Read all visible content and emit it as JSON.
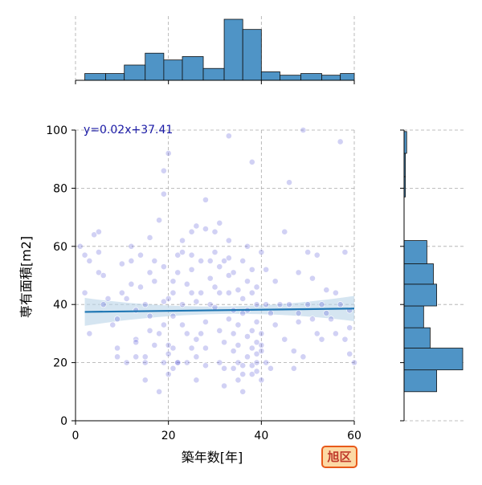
{
  "chart_data": {
    "type": "scatter",
    "xlabel": "築年数[年]",
    "ylabel": "専有面積[m2]",
    "xlim": [
      0,
      60
    ],
    "ylim": [
      0,
      100
    ],
    "xticks": [
      0,
      20,
      40,
      60
    ],
    "yticks": [
      0,
      20,
      40,
      60,
      80,
      100
    ],
    "grid": true,
    "annotation": "y=0.02x+37.41",
    "badge": "旭区",
    "regression": {
      "slope": 0.02,
      "intercept": 37.41,
      "x_range": [
        2,
        60
      ]
    },
    "colors": {
      "points": "#5b5bd6",
      "line": "#1f77b4",
      "band": "#b9d3e8",
      "hist": "#4f94c6",
      "badge_bg": "#fcd9a4",
      "badge_border": "#e8591a"
    },
    "x_histogram": {
      "bin_edges": [
        2,
        6.5,
        10.5,
        15,
        19,
        23,
        27.5,
        32,
        36,
        40,
        44,
        48.5,
        53,
        57,
        60
      ],
      "counts": [
        4,
        4,
        9,
        16,
        12,
        14,
        7,
        36,
        30,
        5,
        3,
        4,
        3,
        4
      ]
    },
    "y_histogram": {
      "bin_edges": [
        10,
        17.5,
        25,
        32,
        39.5,
        47,
        54,
        62,
        69,
        77,
        84,
        92,
        99.5
      ],
      "counts": [
        10,
        18,
        8,
        6,
        10,
        9,
        7,
        0,
        0,
        0.4,
        0.4,
        0.8
      ]
    },
    "points": [
      [
        1,
        60
      ],
      [
        2,
        44
      ],
      [
        2,
        57
      ],
      [
        3,
        55
      ],
      [
        4,
        64
      ],
      [
        5,
        65
      ],
      [
        5,
        58
      ],
      [
        5,
        51
      ],
      [
        3,
        30
      ],
      [
        6,
        40
      ],
      [
        6,
        50
      ],
      [
        7,
        42
      ],
      [
        8,
        33
      ],
      [
        9,
        22
      ],
      [
        9,
        25
      ],
      [
        9,
        35
      ],
      [
        10,
        44
      ],
      [
        10,
        54
      ],
      [
        11,
        20
      ],
      [
        11,
        42
      ],
      [
        12,
        47
      ],
      [
        12,
        55
      ],
      [
        12,
        60
      ],
      [
        13,
        28
      ],
      [
        13,
        22
      ],
      [
        13,
        27
      ],
      [
        14,
        46
      ],
      [
        14,
        57
      ],
      [
        15,
        14
      ],
      [
        15,
        20
      ],
      [
        15,
        22
      ],
      [
        15,
        40
      ],
      [
        16,
        31
      ],
      [
        16,
        51
      ],
      [
        16,
        63
      ],
      [
        17,
        26
      ],
      [
        17,
        48
      ],
      [
        17,
        55
      ],
      [
        18,
        69
      ],
      [
        18,
        30
      ],
      [
        18,
        10
      ],
      [
        19,
        20
      ],
      [
        19,
        33
      ],
      [
        19,
        41
      ],
      [
        19,
        53
      ],
      [
        19,
        78
      ],
      [
        19,
        86
      ],
      [
        20,
        92
      ],
      [
        20,
        16
      ],
      [
        20,
        23
      ],
      [
        20,
        26
      ],
      [
        21,
        18
      ],
      [
        21,
        25
      ],
      [
        21,
        36
      ],
      [
        21,
        44
      ],
      [
        21,
        48
      ],
      [
        22,
        20
      ],
      [
        22,
        57
      ],
      [
        22,
        20
      ],
      [
        23,
        58
      ],
      [
        23,
        33
      ],
      [
        23,
        40
      ],
      [
        23,
        62
      ],
      [
        24,
        47
      ],
      [
        24,
        20
      ],
      [
        24,
        30
      ],
      [
        25,
        25
      ],
      [
        25,
        44
      ],
      [
        25,
        52
      ],
      [
        25,
        57
      ],
      [
        25,
        65
      ],
      [
        26,
        67
      ],
      [
        26,
        14
      ],
      [
        26,
        22
      ],
      [
        26,
        28
      ],
      [
        27,
        44
      ],
      [
        27,
        55
      ],
      [
        27,
        30
      ],
      [
        28,
        66
      ],
      [
        28,
        76
      ],
      [
        28,
        19
      ],
      [
        28,
        34
      ],
      [
        29,
        49
      ],
      [
        29,
        55
      ],
      [
        29,
        40
      ],
      [
        30,
        65
      ],
      [
        30,
        39
      ],
      [
        30,
        46
      ],
      [
        30,
        58
      ],
      [
        31,
        20
      ],
      [
        31,
        68
      ],
      [
        31,
        31
      ],
      [
        31,
        44
      ],
      [
        32,
        55
      ],
      [
        32,
        27
      ],
      [
        32,
        12
      ],
      [
        32,
        18
      ],
      [
        33,
        56
      ],
      [
        33,
        62
      ],
      [
        33,
        35
      ],
      [
        33,
        44
      ],
      [
        33,
        50
      ],
      [
        34,
        38
      ],
      [
        34,
        51
      ],
      [
        34,
        24
      ],
      [
        34,
        18
      ],
      [
        35,
        33
      ],
      [
        35,
        45
      ],
      [
        35,
        20
      ],
      [
        35,
        14
      ],
      [
        35,
        26
      ],
      [
        36,
        19
      ],
      [
        36,
        42
      ],
      [
        36,
        10
      ],
      [
        36,
        55
      ],
      [
        36,
        16
      ],
      [
        37,
        38
      ],
      [
        37,
        29
      ],
      [
        37,
        22
      ],
      [
        37,
        48
      ],
      [
        37,
        60
      ],
      [
        38,
        16
      ],
      [
        38,
        19
      ],
      [
        38,
        25
      ],
      [
        38,
        31
      ],
      [
        38,
        44
      ],
      [
        38,
        89
      ],
      [
        38,
        52
      ],
      [
        39,
        17
      ],
      [
        39,
        20
      ],
      [
        39,
        23
      ],
      [
        39,
        34
      ],
      [
        39,
        40
      ],
      [
        39,
        46
      ],
      [
        40,
        58
      ],
      [
        40,
        24
      ],
      [
        40,
        26
      ],
      [
        40,
        30
      ],
      [
        40,
        14
      ],
      [
        41,
        40
      ],
      [
        41,
        52
      ],
      [
        41,
        20
      ],
      [
        42,
        37
      ],
      [
        42,
        18
      ],
      [
        43,
        33
      ],
      [
        43,
        48
      ],
      [
        44,
        40
      ],
      [
        45,
        28
      ],
      [
        45,
        65
      ],
      [
        46,
        40
      ],
      [
        46,
        82
      ],
      [
        47,
        24
      ],
      [
        47,
        18
      ],
      [
        48,
        51
      ],
      [
        48,
        34
      ],
      [
        48,
        37
      ],
      [
        49,
        22
      ],
      [
        49,
        100
      ],
      [
        50,
        40
      ],
      [
        50,
        58
      ],
      [
        51,
        35
      ],
      [
        51,
        49
      ],
      [
        52,
        57
      ],
      [
        52,
        30
      ],
      [
        53,
        40
      ],
      [
        53,
        28
      ],
      [
        54,
        45
      ],
      [
        54,
        37
      ],
      [
        55,
        35
      ],
      [
        56,
        44
      ],
      [
        56,
        30
      ],
      [
        57,
        40
      ],
      [
        57,
        96
      ],
      [
        58,
        28
      ],
      [
        58,
        58
      ],
      [
        59,
        23
      ],
      [
        59,
        38
      ],
      [
        60,
        20
      ],
      [
        59,
        32
      ],
      [
        33,
        98
      ],
      [
        20,
        42
      ],
      [
        28,
        25
      ],
      [
        36,
        37
      ],
      [
        34,
        30
      ],
      [
        13,
        38
      ],
      [
        26,
        41
      ],
      [
        31,
        53
      ],
      [
        39,
        27
      ],
      [
        22,
        51
      ],
      [
        16,
        36
      ]
    ]
  }
}
